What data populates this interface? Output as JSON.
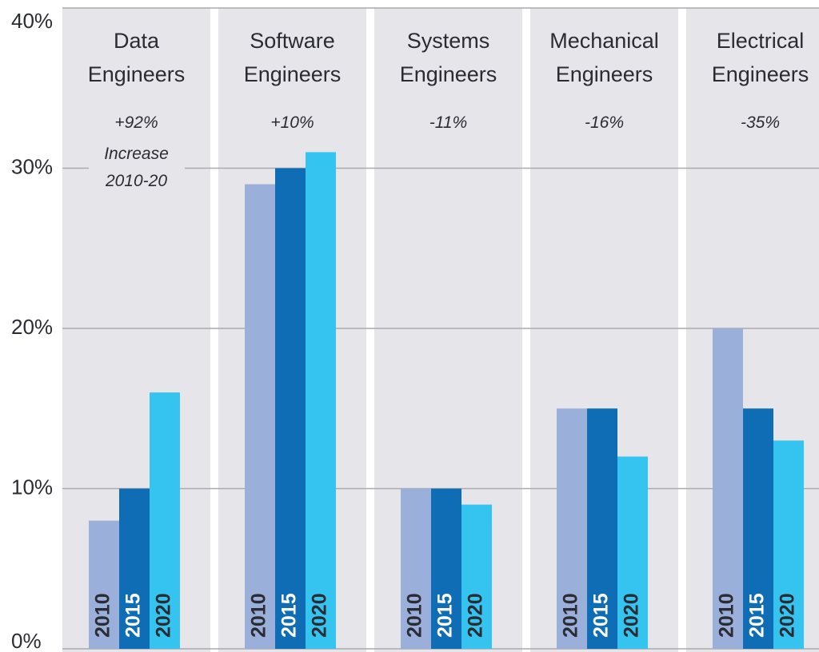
{
  "chart_data": {
    "type": "bar",
    "categories": [
      "Data Engineers",
      "Software Engineers",
      "Systems Engineers",
      "Mechanical Engineers",
      "Electrical Engineers"
    ],
    "series": [
      {
        "name": "2010",
        "color": "#9aafd9",
        "text_color": "#2b2b33",
        "values": [
          8,
          29,
          10,
          15,
          20
        ]
      },
      {
        "name": "2015",
        "color": "#0e6db5",
        "text_color": "#ffffff",
        "values": [
          10,
          30,
          10,
          15,
          15
        ]
      },
      {
        "name": "2020",
        "color": "#35c3f0",
        "text_color": "#2b2b33",
        "values": [
          16,
          31,
          9,
          12,
          13
        ]
      }
    ],
    "change_labels": [
      "+92%",
      "+10%",
      "-11%",
      "-16%",
      "-35%"
    ],
    "annotation": "Increase 2010-20",
    "ylim": [
      0,
      40
    ],
    "yticks": [
      {
        "value": 0,
        "label": "0%"
      },
      {
        "value": 10,
        "label": "10%"
      },
      {
        "value": 20,
        "label": "20%"
      },
      {
        "value": 30,
        "label": "30%"
      },
      {
        "value": 40,
        "label": "40%"
      }
    ],
    "grid": true
  }
}
